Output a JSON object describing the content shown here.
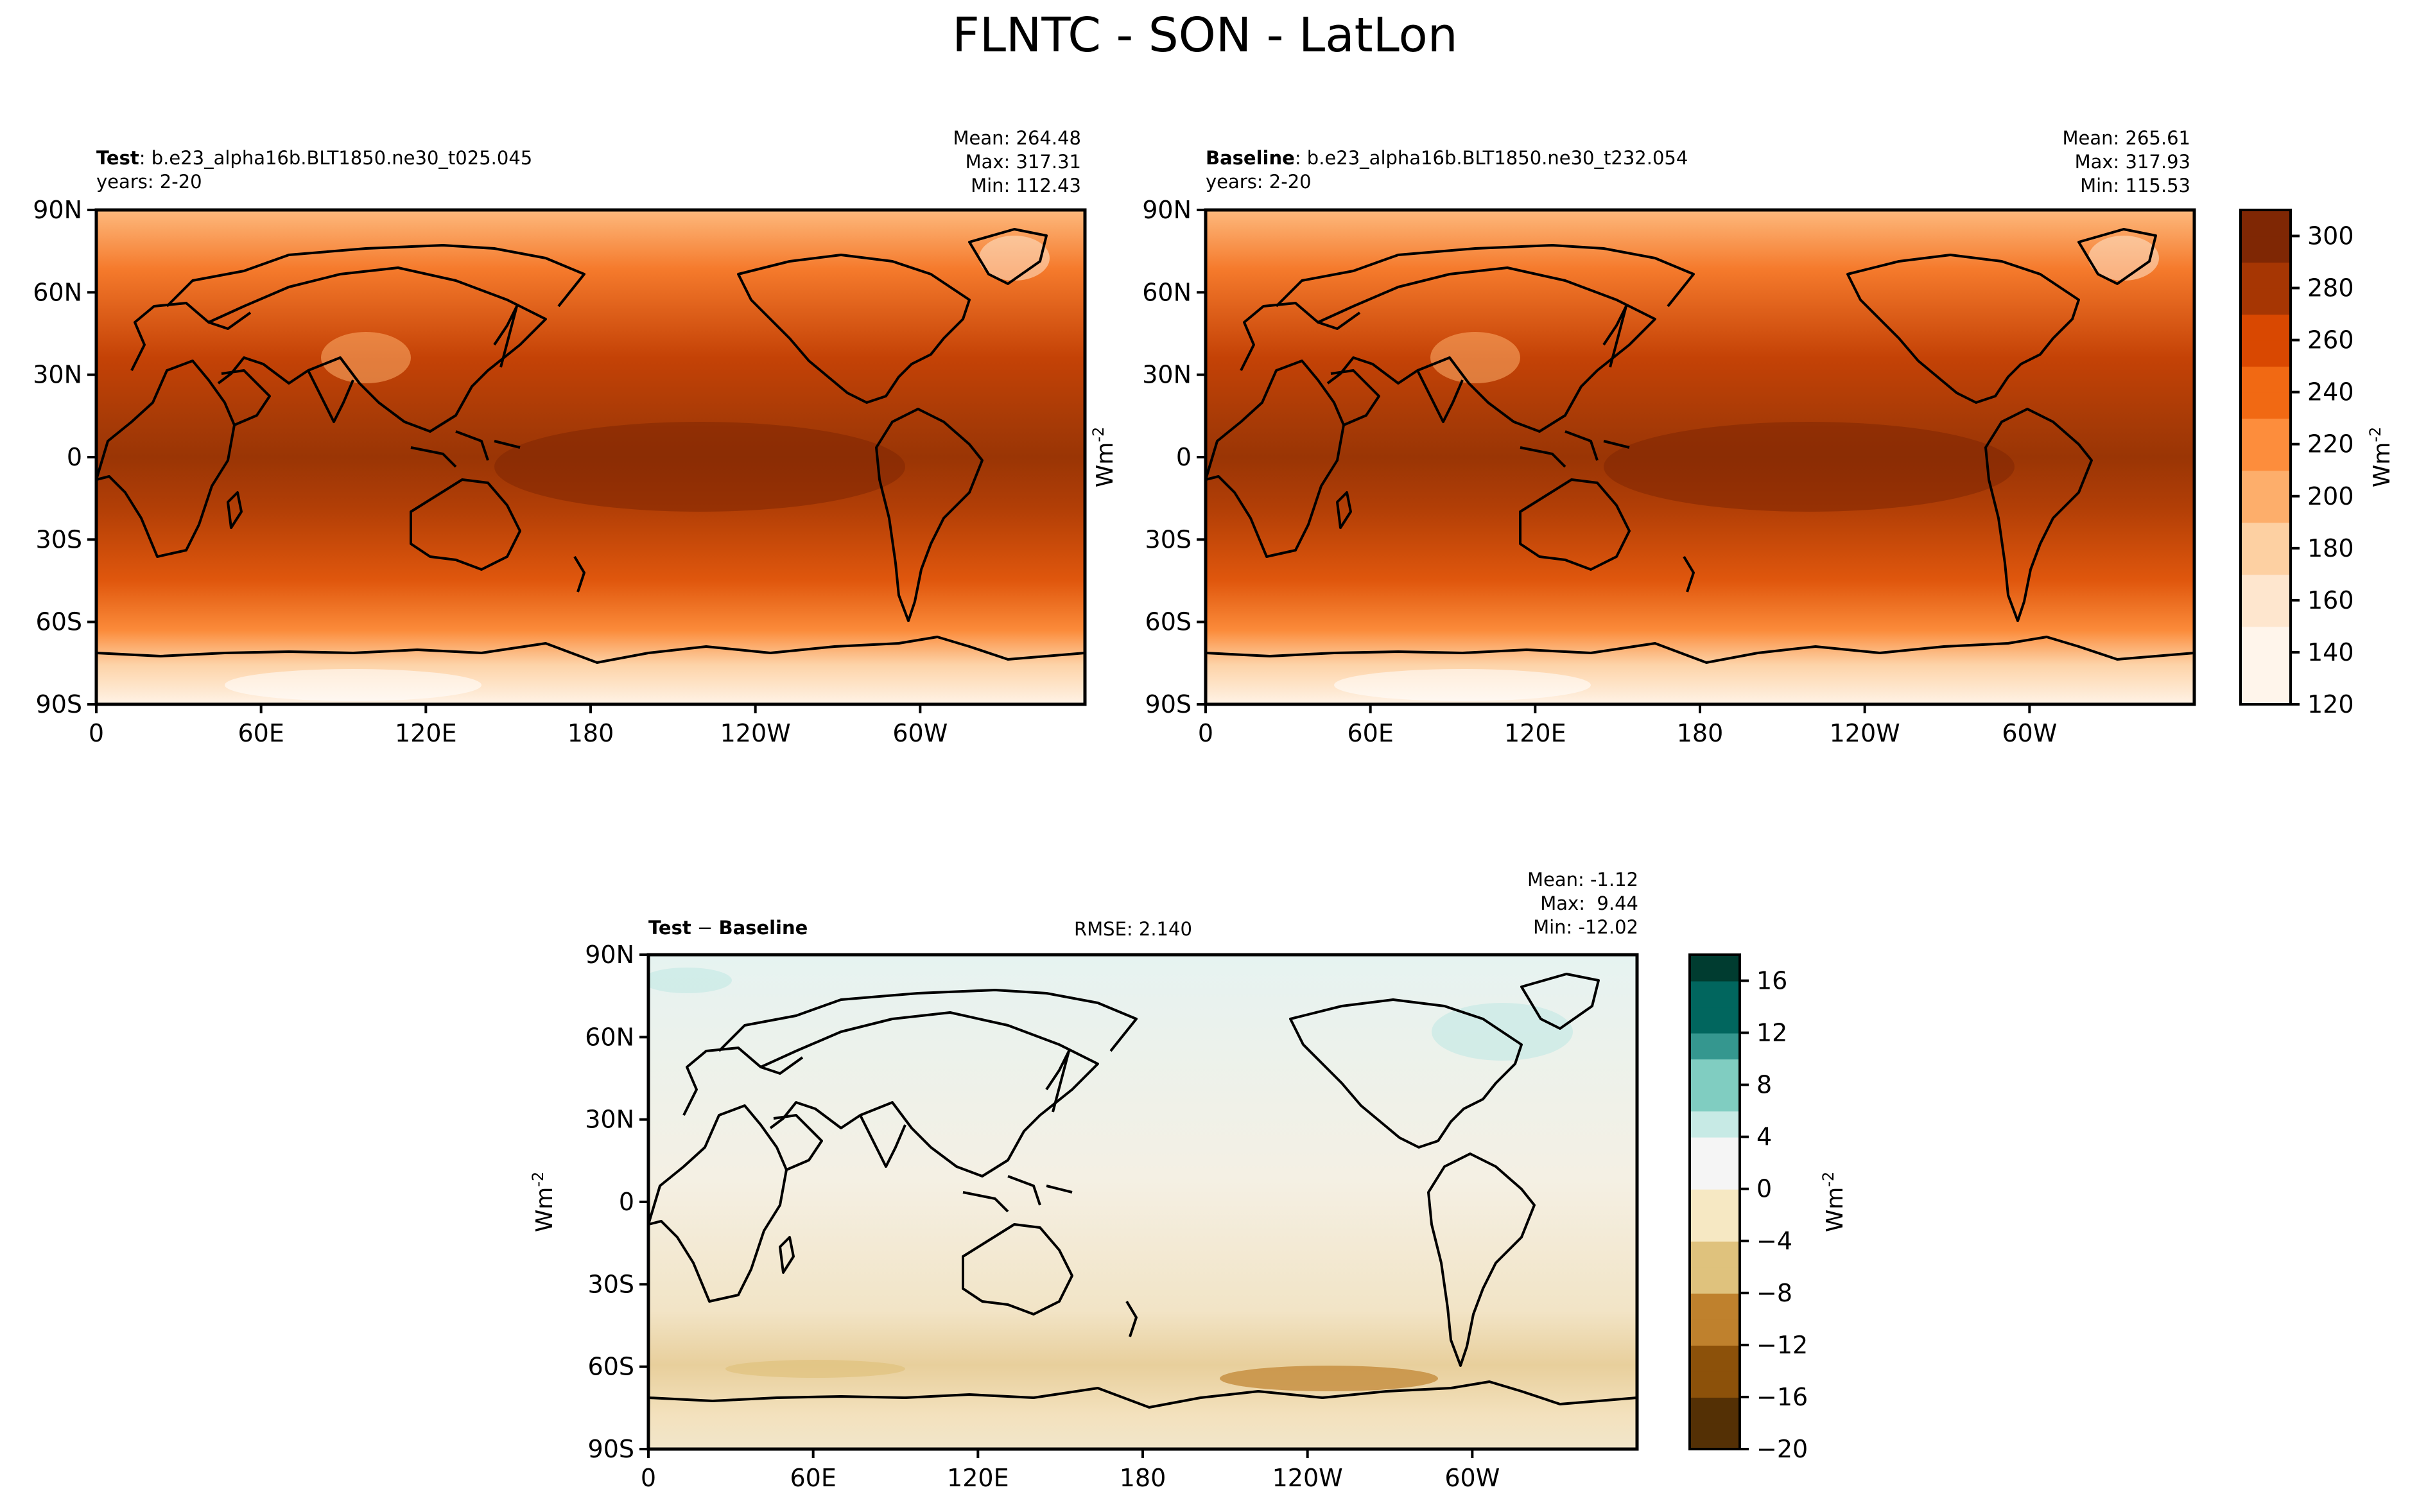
{
  "figure": {
    "title": "FLNTC - SON - LatLon"
  },
  "chart_data": [
    {
      "type": "heatmap",
      "kind": "map",
      "title_bold": "Test",
      "title_rest": ": b.e23_alpha16b.BLT1850.ne30_t025.045",
      "subtitle": "years: 2-20",
      "stats": {
        "mean": "Mean: 264.48",
        "max": "Max: 317.31",
        "min": "Min: 112.43"
      },
      "x_ticks": [
        "0",
        "60E",
        "120E",
        "180",
        "120W",
        "60W"
      ],
      "y_ticks": [
        "90N",
        "60N",
        "30N",
        "0",
        "30S",
        "60S",
        "90S"
      ],
      "colormap": "Oranges",
      "vrange": [
        120,
        310
      ]
    },
    {
      "type": "heatmap",
      "kind": "map",
      "title_bold": "Baseline",
      "title_rest": ": b.e23_alpha16b.BLT1850.ne30_t232.054",
      "subtitle": "years: 2-20",
      "stats": {
        "mean": "Mean: 265.61",
        "max": "Max: 317.93",
        "min": "Min: 115.53"
      },
      "x_ticks": [
        "0",
        "60E",
        "120E",
        "180",
        "120W",
        "60W"
      ],
      "y_ticks": [
        "90N",
        "60N",
        "30N",
        "0",
        "30S",
        "60S",
        "90S"
      ],
      "ylabel": "Wm",
      "ylabel_sup": "-2",
      "colormap": "Oranges",
      "colorbar": {
        "ticks": [
          "120",
          "140",
          "160",
          "180",
          "200",
          "220",
          "240",
          "260",
          "280",
          "300"
        ],
        "vmin": 120,
        "vmax": 310,
        "label": "Wm",
        "label_sup": "-2"
      }
    },
    {
      "type": "heatmap",
      "kind": "map",
      "title_bold": "Test",
      "title_sep": " − ",
      "title_bold2": "Baseline",
      "rmse": "RMSE: 2.140",
      "stats": {
        "mean": "Mean: -1.12",
        "max": "Max:  9.44",
        "min": "Min: -12.02"
      },
      "x_ticks": [
        "0",
        "60E",
        "120E",
        "180",
        "120W",
        "60W"
      ],
      "y_ticks": [
        "90N",
        "60N",
        "30N",
        "0",
        "30S",
        "60S",
        "90S"
      ],
      "ylabel": "Wm",
      "ylabel_sup": "-2",
      "colormap": "BrBG",
      "colorbar": {
        "ticks": [
          "−20",
          "−16",
          "−12",
          "−8",
          "−4",
          "0",
          "4",
          "8",
          "12",
          "16"
        ],
        "vmin": -20,
        "vmax": 18,
        "label": "Wm",
        "label_sup": "-2"
      }
    }
  ],
  "colors": {
    "oranges": [
      "#fff5eb",
      "#fee6ce",
      "#fdd0a2",
      "#fdae6b",
      "#fd8d3c",
      "#f16913",
      "#d94801",
      "#a63603",
      "#7f2704"
    ],
    "brbg_neg": [
      "#543005",
      "#8c510a",
      "#bf812d",
      "#dfc27d",
      "#f6e8c3"
    ],
    "brbg_pos": [
      "#f5f5f5",
      "#c7eae5",
      "#80cdc1",
      "#35978f",
      "#01665e",
      "#003c30"
    ]
  }
}
